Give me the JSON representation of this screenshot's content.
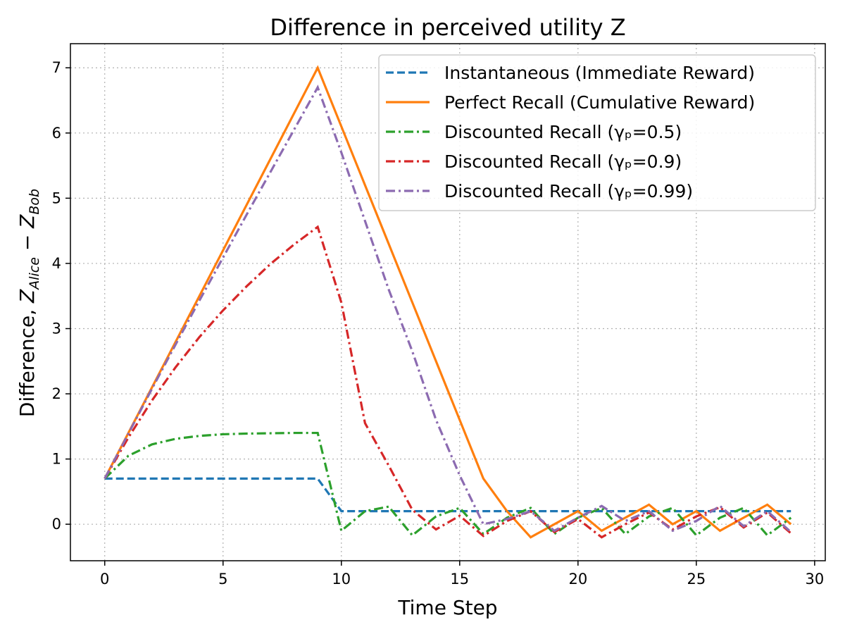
{
  "chart_data": {
    "type": "line",
    "title": "Difference in perceived utility Z",
    "xlabel": "Time Step",
    "ylabel": "Difference, Z_Alice − Z_Bob",
    "ylabel_parts": {
      "prefix": "Difference, ",
      "z1": "Z",
      "sub1": "Alice",
      "minus": " − ",
      "z2": "Z",
      "sub2": "Bob"
    },
    "xlim": [
      -1.45,
      30.45
    ],
    "ylim": [
      -0.56,
      7.37
    ],
    "xticks": [
      0,
      5,
      10,
      15,
      20,
      25,
      30
    ],
    "yticks": [
      0,
      1,
      2,
      3,
      4,
      5,
      6,
      7
    ],
    "grid": true,
    "legend_position": "top-right",
    "x": [
      0,
      1,
      2,
      3,
      4,
      5,
      6,
      7,
      8,
      9,
      10,
      11,
      12,
      13,
      14,
      15,
      16,
      17,
      18,
      19,
      20,
      21,
      22,
      23,
      24,
      25,
      26,
      27,
      28,
      29
    ],
    "series": [
      {
        "name": "Instantaneous (Immediate Reward)",
        "color": "#1f77b4",
        "style": "dashed",
        "values": [
          0.7,
          0.7,
          0.7,
          0.7,
          0.7,
          0.7,
          0.7,
          0.7,
          0.7,
          0.7,
          0.2,
          0.2,
          0.2,
          0.2,
          0.2,
          0.2,
          0.2,
          0.2,
          0.2,
          0.2,
          0.2,
          0.2,
          0.2,
          0.2,
          0.2,
          0.2,
          0.2,
          0.2,
          0.2,
          0.2
        ]
      },
      {
        "name": "Perfect Recall (Cumulative Reward)",
        "color": "#ff7f0e",
        "style": "solid",
        "values": [
          0.7,
          1.4,
          2.1,
          2.8,
          3.5,
          4.2,
          4.9,
          5.6,
          6.3,
          7.0,
          6.1,
          5.2,
          4.3,
          3.4,
          2.5,
          1.6,
          0.7,
          0.2,
          -0.2,
          0.0,
          0.2,
          -0.1,
          0.1,
          0.3,
          0.0,
          0.2,
          -0.1,
          0.1,
          0.3,
          0.0
        ]
      },
      {
        "name": "Discounted Recall (γₚ=0.5)",
        "color": "#2ca02c",
        "style": "dashdot",
        "values": [
          0.7,
          1.05,
          1.225,
          1.31,
          1.355,
          1.38,
          1.39,
          1.395,
          1.4,
          1.4,
          -0.1,
          0.2,
          0.27,
          -0.17,
          0.12,
          0.25,
          -0.15,
          0.1,
          0.25,
          -0.15,
          0.1,
          0.25,
          -0.15,
          0.12,
          0.25,
          -0.17,
          0.1,
          0.25,
          -0.17,
          0.1
        ]
      },
      {
        "name": "Discounted Recall (γₚ=0.9)",
        "color": "#d62728",
        "style": "dashdot",
        "values": [
          0.7,
          1.33,
          1.9,
          2.41,
          2.87,
          3.28,
          3.65,
          3.99,
          4.29,
          4.56,
          3.4,
          1.55,
          0.9,
          0.22,
          -0.08,
          0.13,
          -0.18,
          0.05,
          0.2,
          -0.12,
          0.08,
          -0.2,
          0.0,
          0.18,
          -0.08,
          0.12,
          0.26,
          -0.05,
          0.18,
          -0.14
        ]
      },
      {
        "name": "Discounted Recall (γₚ=0.99)",
        "color": "#8c6bb1",
        "style": "dashdot",
        "values": [
          0.7,
          1.39,
          2.08,
          2.76,
          3.43,
          4.09,
          4.75,
          5.4,
          6.05,
          6.7,
          5.7,
          4.65,
          3.6,
          2.65,
          1.6,
          0.75,
          0.0,
          0.08,
          0.2,
          -0.1,
          0.1,
          0.28,
          0.05,
          0.2,
          -0.1,
          0.05,
          0.28,
          -0.03,
          0.2,
          -0.12
        ]
      }
    ]
  }
}
